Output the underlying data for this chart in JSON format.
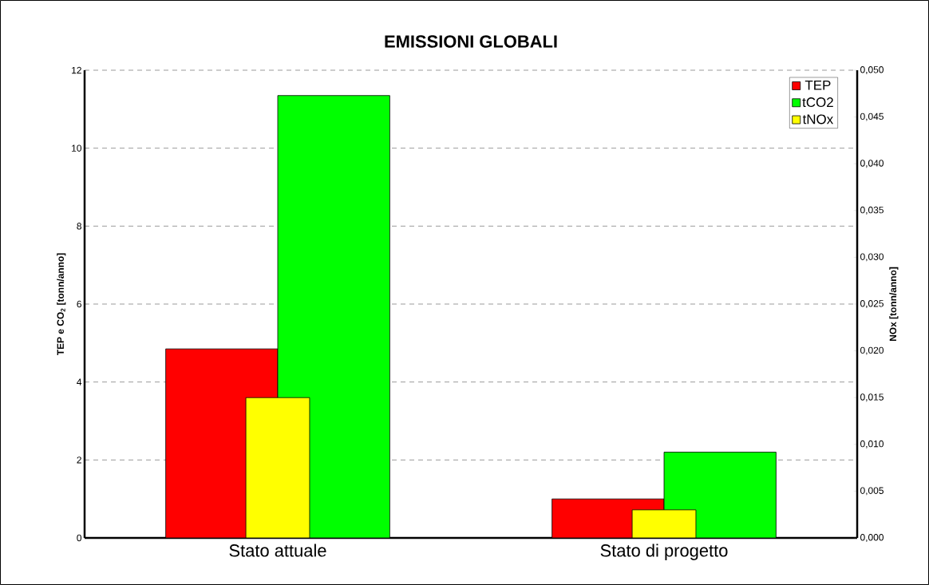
{
  "chart_data": {
    "type": "bar",
    "title": "EMISSIONI GLOBALI",
    "categories": [
      "Stato attuale",
      "Stato di progetto"
    ],
    "series": [
      {
        "name": "TEP",
        "color": "#ff0000",
        "values": [
          4.85,
          1.0
        ]
      },
      {
        "name": "tCO2",
        "color": "#00ff00",
        "values": [
          11.35,
          2.2
        ]
      },
      {
        "name": "tNOx",
        "color": "#ffff00",
        "values": [
          0.015,
          0.003
        ],
        "axis": "y2"
      }
    ],
    "ylabel": "TEP e CO$_{2}$ [tonn/anno]",
    "y2label": "NOx [tonn/anno]",
    "ylim": [
      0,
      12
    ],
    "yticks": [
      0,
      2,
      4,
      6,
      8,
      10,
      12
    ],
    "y2lim": [
      0,
      0.05
    ],
    "y2ticks": [
      {
        "value": 0,
        "label": "0,000"
      },
      {
        "value": 0.005,
        "label": "0,005"
      },
      {
        "value": 0.01,
        "label": "0,010"
      },
      {
        "value": 0.015,
        "label": "0,015"
      },
      {
        "value": 0.02,
        "label": "0,020"
      },
      {
        "value": 0.025,
        "label": "0,025"
      },
      {
        "value": 0.03,
        "label": "0,030"
      },
      {
        "value": 0.035,
        "label": "0,035"
      },
      {
        "value": 0.04,
        "label": "0,040"
      },
      {
        "value": 0.045,
        "label": "0,045"
      },
      {
        "value": 0.05,
        "label": "0,050"
      }
    ],
    "grid": "y",
    "legend": "top right"
  }
}
